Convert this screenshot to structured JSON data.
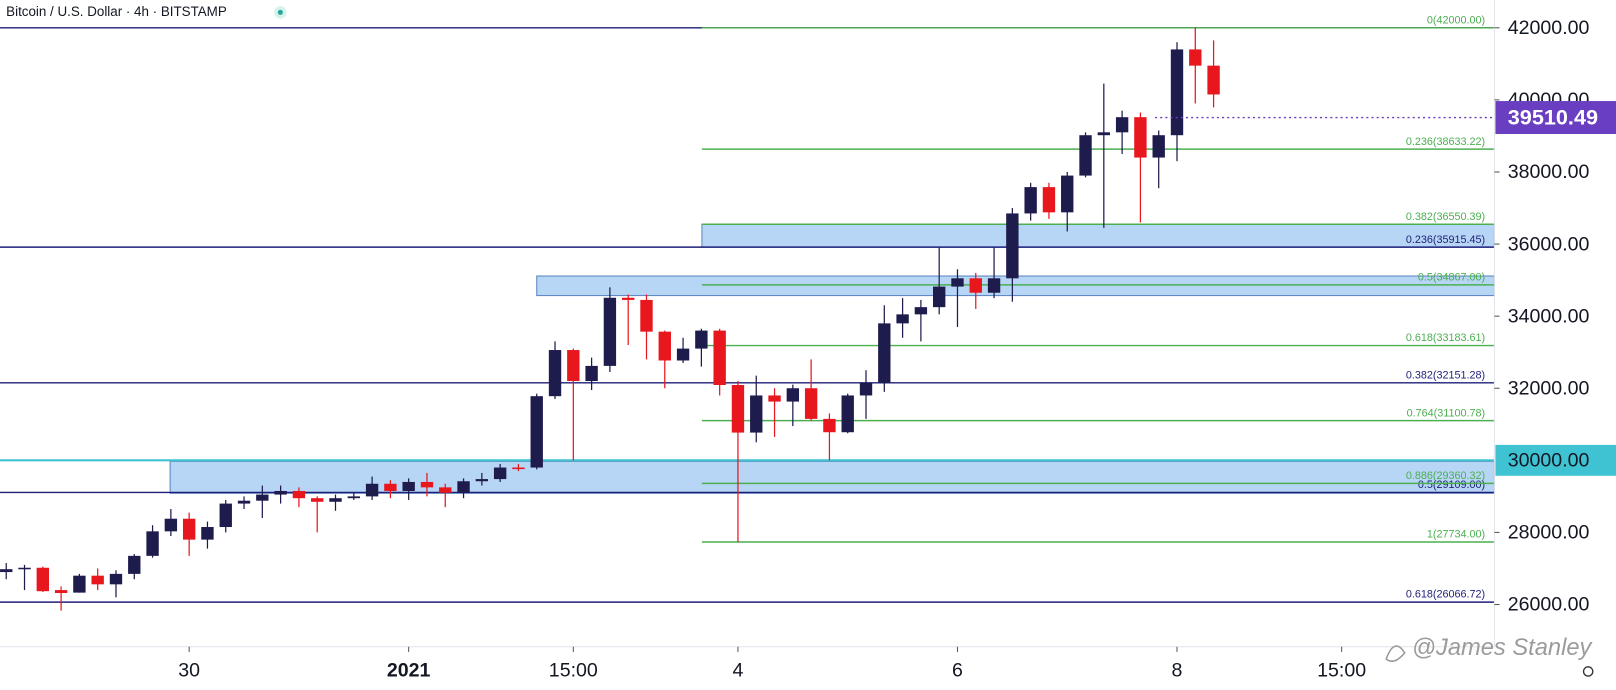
{
  "chart_data": {
    "type": "candlestick",
    "title": "Bitcoin / U.S. Dollar · 4h · BITSTAMP",
    "watermark": "@James Stanley",
    "up_color": "#1e1b4d",
    "down_color": "#e8161d",
    "x": [
      0,
      1,
      2,
      3,
      4,
      5,
      6,
      7,
      8,
      9,
      10,
      11,
      12,
      13,
      14,
      15,
      16,
      17,
      18,
      19,
      20,
      21,
      22,
      23,
      24,
      25,
      26,
      27,
      28,
      29,
      30,
      31,
      32,
      33,
      34,
      35,
      36,
      37,
      38,
      39,
      40,
      41,
      42,
      43,
      44,
      45,
      46,
      47,
      48,
      49,
      50,
      51,
      52,
      53,
      54,
      55,
      56,
      57,
      58,
      59,
      60,
      61,
      62,
      63,
      64,
      65,
      66
    ],
    "open": [
      26900,
      26980,
      27020,
      26400,
      26330,
      26800,
      26560,
      26850,
      27350,
      28030,
      28380,
      27800,
      28150,
      28800,
      28880,
      29050,
      29150,
      28950,
      28850,
      28950,
      29000,
      29350,
      29150,
      29400,
      29250,
      29100,
      29420,
      29480,
      29800,
      29800,
      31780,
      33060,
      32200,
      32620,
      34510,
      34450,
      33570,
      32770,
      33100,
      33600,
      32090,
      30770,
      31800,
      31630,
      32000,
      31150,
      30780,
      31800,
      32150,
      33800,
      34050,
      34250,
      34820,
      35050,
      34650,
      35050,
      36850,
      37580,
      36880,
      37900,
      39020,
      39100,
      39520,
      38400,
      39020,
      41400,
      40950
    ],
    "high": [
      27150,
      27100,
      27050,
      26500,
      26850,
      27000,
      26950,
      27400,
      28200,
      28650,
      28550,
      28300,
      28900,
      29000,
      29300,
      29300,
      29250,
      29000,
      29050,
      29100,
      29550,
      29450,
      29500,
      29650,
      29350,
      29500,
      29650,
      29900,
      29900,
      31850,
      33300,
      33100,
      32850,
      34800,
      34600,
      34600,
      33600,
      33400,
      33650,
      33650,
      32200,
      32350,
      32000,
      32100,
      32800,
      31300,
      31850,
      32500,
      34300,
      34500,
      34450,
      35900,
      35300,
      35200,
      35900,
      37000,
      37700,
      37700,
      38000,
      39100,
      40450,
      39700,
      39650,
      39150,
      41600,
      42000,
      41650
    ],
    "low": [
      26700,
      26400,
      26350,
      25830,
      26330,
      26400,
      26200,
      26700,
      27300,
      27900,
      27350,
      27550,
      28000,
      28650,
      28400,
      28800,
      28700,
      28000,
      28600,
      28900,
      28900,
      28950,
      28900,
      29000,
      28700,
      28950,
      29300,
      29400,
      29700,
      29750,
      31700,
      30000,
      31950,
      32450,
      33200,
      32800,
      32000,
      32700,
      32600,
      31800,
      27734,
      30500,
      30650,
      30950,
      31100,
      30000,
      30750,
      31150,
      31900,
      33400,
      33300,
      34050,
      33700,
      34200,
      34500,
      34400,
      36650,
      36700,
      36350,
      37850,
      36450,
      38500,
      36600,
      37550,
      38300,
      39900,
      39790
    ],
    "close": [
      26980,
      27020,
      26370,
      26320,
      26800,
      26560,
      26850,
      27350,
      28030,
      28380,
      27800,
      28150,
      28800,
      28880,
      29050,
      29150,
      28950,
      28850,
      28950,
      29000,
      29350,
      29150,
      29400,
      29250,
      29100,
      29420,
      29480,
      29800,
      29780,
      31780,
      33060,
      32200,
      32620,
      34510,
      34450,
      33570,
      32770,
      33100,
      33600,
      32090,
      30770,
      31800,
      31630,
      32000,
      31150,
      30780,
      31800,
      32150,
      33800,
      34050,
      34250,
      34820,
      35050,
      34650,
      35050,
      36850,
      37580,
      36880,
      37900,
      39020,
      39100,
      39520,
      38400,
      39020,
      41400,
      40950,
      40150
    ],
    "xlim": [
      -0.34,
      81.35
    ],
    "ylim": [
      24857,
      42771
    ],
    "xticks": [
      {
        "value": 10,
        "label": "30"
      },
      {
        "value": 22,
        "label": "2021"
      },
      {
        "value": 31,
        "label": "15:00"
      },
      {
        "value": 40,
        "label": "4"
      },
      {
        "value": 52,
        "label": "6"
      },
      {
        "value": 64,
        "label": "8"
      },
      {
        "value": 73,
        "label": "15:00"
      }
    ],
    "yticks": [
      {
        "value": 26000,
        "label": "26000.00"
      },
      {
        "value": 28000,
        "label": "28000.00"
      },
      {
        "value": 32000,
        "label": "32000.00"
      },
      {
        "value": 34000,
        "label": "34000.00"
      },
      {
        "value": 36000,
        "label": "36000.00"
      },
      {
        "value": 38000,
        "label": "38000.00"
      },
      {
        "value": 40000,
        "label": "40000.00"
      },
      {
        "value": 42000,
        "label": "42000.00"
      }
    ],
    "zones": [
      {
        "x_start": 38.03,
        "low": 35915,
        "high": 36550
      },
      {
        "x_start": 29.0,
        "low": 34571,
        "high": 35114
      },
      {
        "x_start": 8.96,
        "low": 29086,
        "high": 29971
      }
    ],
    "fib_sets": [
      {
        "color": "#1f1f7a",
        "x_start": -0.34,
        "levels": [
          {
            "value": 42000
          },
          {
            "value": 35915.45,
            "label": "0.236(35915.45)"
          },
          {
            "value": 32151.28,
            "label": "0.382(32151.28)"
          },
          {
            "value": 29109.0,
            "label": "0.5(29109.00)"
          },
          {
            "value": 26066.72,
            "label": "0.618(26066.72)"
          }
        ]
      },
      {
        "color": "#4caf50",
        "x_start": 38.03,
        "levels": [
          {
            "value": 42000,
            "label": "0(42000.00)"
          },
          {
            "value": 38633.22,
            "label": "0.236(38633.22)"
          },
          {
            "value": 36550.39,
            "label": "0.382(36550.39)"
          },
          {
            "value": 34867.0,
            "label": "0.5(34867.00)"
          },
          {
            "value": 33183.61,
            "label": "0.618(33183.61)"
          },
          {
            "value": 31100.78,
            "label": "0.764(31100.78)"
          },
          {
            "value": 29360.32,
            "label": "0.886(29360.32)"
          },
          {
            "value": 27734.0,
            "label": "1(27734.00)"
          }
        ]
      }
    ],
    "price_lines": [
      {
        "value": 30000,
        "label": "30000.00",
        "color": "#3fc3d3"
      }
    ],
    "last_price": {
      "value": 39510.49,
      "label": "39510.49",
      "color": "#6a3ec0",
      "x_start": 62.8
    }
  }
}
